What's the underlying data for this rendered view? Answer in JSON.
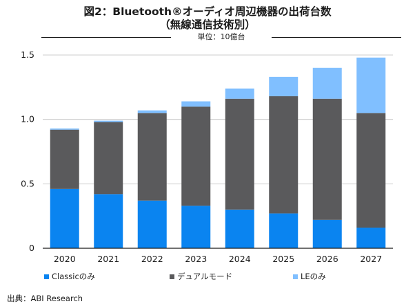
{
  "header": {
    "title_line1": "図2：Bluetooth®オーディオ周辺機器の出荷台数",
    "title_line2": "（無線通信技術別）",
    "unit": "単位：10億台"
  },
  "source": "出典：ABI Research",
  "chart_data": {
    "type": "bar",
    "stacked": true,
    "categories": [
      "2020",
      "2021",
      "2022",
      "2023",
      "2024",
      "2025",
      "2026",
      "2027"
    ],
    "series": [
      {
        "name": "Classicのみ",
        "color": "#0a84f0",
        "values": [
          0.46,
          0.42,
          0.37,
          0.33,
          0.3,
          0.27,
          0.22,
          0.16
        ]
      },
      {
        "name": "デュアルモード",
        "color": "#5a5a5c",
        "values": [
          0.46,
          0.56,
          0.68,
          0.77,
          0.86,
          0.91,
          0.94,
          0.89
        ]
      },
      {
        "name": "LEのみ",
        "color": "#80bfff",
        "values": [
          0.01,
          0.01,
          0.02,
          0.04,
          0.08,
          0.15,
          0.24,
          0.43
        ]
      }
    ],
    "ylim": [
      0,
      1.5
    ],
    "yticks": [
      "0",
      "0.5",
      "1.0",
      "1.5"
    ],
    "ytick_values": [
      0,
      0.5,
      1.0,
      1.5
    ],
    "grid": true,
    "legend_position": "bottom"
  }
}
